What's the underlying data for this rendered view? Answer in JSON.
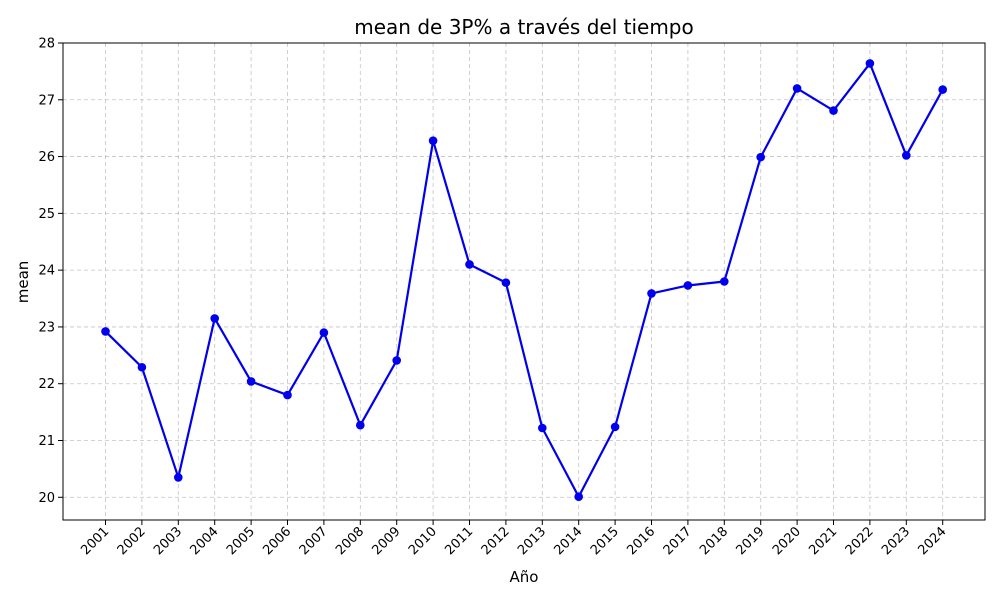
{
  "chart_data": {
    "type": "line",
    "title": "mean de 3P% a través del tiempo",
    "xlabel": "Año",
    "ylabel": "mean",
    "ylim": [
      19.6,
      28
    ],
    "yticks": [
      20,
      21,
      22,
      23,
      24,
      25,
      26,
      27,
      28
    ],
    "grid": true,
    "color": "#0000ee",
    "x": [
      "2001",
      "2002",
      "2003",
      "2004",
      "2005",
      "2006",
      "2007",
      "2008",
      "2009",
      "2010",
      "2011",
      "2012",
      "2013",
      "2014",
      "2015",
      "2016",
      "2017",
      "2018",
      "2019",
      "2020",
      "2021",
      "2022",
      "2023",
      "2024"
    ],
    "y": [
      22.92,
      22.29,
      20.35,
      23.15,
      22.04,
      21.8,
      22.9,
      21.27,
      22.41,
      26.28,
      24.1,
      23.78,
      21.22,
      20.01,
      21.24,
      23.59,
      23.73,
      23.8,
      25.99,
      27.2,
      26.81,
      27.64,
      26.02,
      27.18
    ]
  }
}
